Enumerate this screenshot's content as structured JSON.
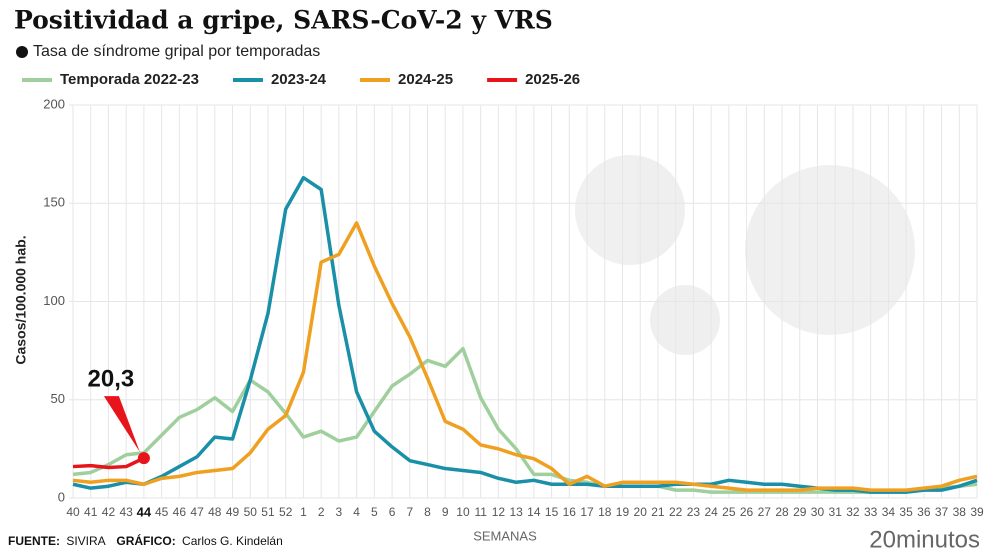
{
  "chart_data": {
    "type": "line",
    "title": "Positividad a gripe, SARS-CoV-2 y VRS",
    "subtitle": "Tasa de síndrome gripal por temporadas",
    "y_label": "Casos/100.000 hab.",
    "x_label": "SEMANAS",
    "categories": [
      "40",
      "41",
      "42",
      "43",
      "44",
      "45",
      "46",
      "47",
      "48",
      "49",
      "50",
      "51",
      "52",
      "1",
      "2",
      "3",
      "4",
      "5",
      "6",
      "7",
      "8",
      "9",
      "10",
      "11",
      "12",
      "13",
      "14",
      "15",
      "16",
      "17",
      "18",
      "19",
      "20",
      "21",
      "22",
      "23",
      "24",
      "25",
      "26",
      "27",
      "28",
      "29",
      "30",
      "31",
      "32",
      "33",
      "34",
      "35",
      "36",
      "37",
      "38",
      "39"
    ],
    "ylim": [
      0,
      200
    ],
    "yticks": [
      0,
      50,
      100,
      150,
      200
    ],
    "grid": true,
    "series": [
      {
        "name": "Temporada 2022-23",
        "color": "#9fcf9c",
        "values": [
          12,
          13,
          17,
          22,
          23,
          32,
          41,
          45,
          51,
          44,
          60,
          54,
          43,
          31,
          34,
          29,
          31,
          44,
          57,
          63,
          70,
          67,
          76,
          51,
          35,
          25,
          12,
          12,
          9,
          8,
          6,
          6,
          6,
          6,
          4,
          4,
          3,
          3,
          3,
          3,
          3,
          3,
          3,
          3,
          3,
          3,
          3,
          3,
          4,
          5,
          6,
          7
        ]
      },
      {
        "name": "2023-24",
        "color": "#1a8fa8",
        "values": [
          7,
          5,
          6,
          8,
          7,
          11,
          16,
          21,
          31,
          30,
          60,
          94,
          147,
          163,
          157,
          98,
          54,
          34,
          26,
          19,
          17,
          15,
          14,
          13,
          10,
          8,
          9,
          7,
          7,
          7,
          6,
          6,
          6,
          6,
          7,
          7,
          7,
          9,
          8,
          7,
          7,
          6,
          5,
          4,
          4,
          3,
          3,
          3,
          4,
          4,
          6,
          9
        ]
      },
      {
        "name": "2024-25",
        "color": "#f0a020",
        "values": [
          9,
          8,
          9,
          9,
          7,
          10,
          11,
          13,
          14,
          15,
          23,
          35,
          42,
          64,
          120,
          124,
          140,
          118,
          99,
          82,
          61,
          39,
          35,
          27,
          25,
          22,
          20,
          15,
          7,
          11,
          6,
          8,
          8,
          8,
          8,
          7,
          6,
          5,
          4,
          4,
          4,
          4,
          5,
          5,
          5,
          4,
          4,
          4,
          5,
          6,
          9,
          11
        ]
      },
      {
        "name": "2025-26",
        "color": "#e8141c",
        "values": [
          16,
          16.5,
          15.5,
          16,
          20.3,
          null,
          null,
          null,
          null,
          null,
          null,
          null,
          null,
          null,
          null,
          null,
          null,
          null,
          null,
          null,
          null,
          null,
          null,
          null,
          null,
          null,
          null,
          null,
          null,
          null,
          null,
          null,
          null,
          null,
          null,
          null,
          null,
          null,
          null,
          null,
          null,
          null,
          null,
          null,
          null,
          null,
          null,
          null,
          null,
          null,
          null,
          null
        ],
        "value_labels": [
          null,
          null,
          null,
          null,
          "20,3",
          null,
          null,
          null,
          null,
          null,
          null,
          null,
          null,
          null,
          null,
          null,
          null,
          null,
          null,
          null,
          null,
          null,
          null,
          null,
          null,
          null,
          null,
          null,
          null,
          null,
          null,
          null,
          null,
          null,
          null,
          null,
          null,
          null,
          null,
          null,
          null,
          null,
          null,
          null,
          null,
          null,
          null,
          null,
          null,
          null,
          null,
          null
        ]
      }
    ],
    "source": {
      "label": "FUENTE:",
      "text": "SIVIRA"
    },
    "credit": {
      "label": "GRÁFICO:",
      "text": "Carlos G. Kindelán"
    },
    "brand": "20minutos"
  }
}
